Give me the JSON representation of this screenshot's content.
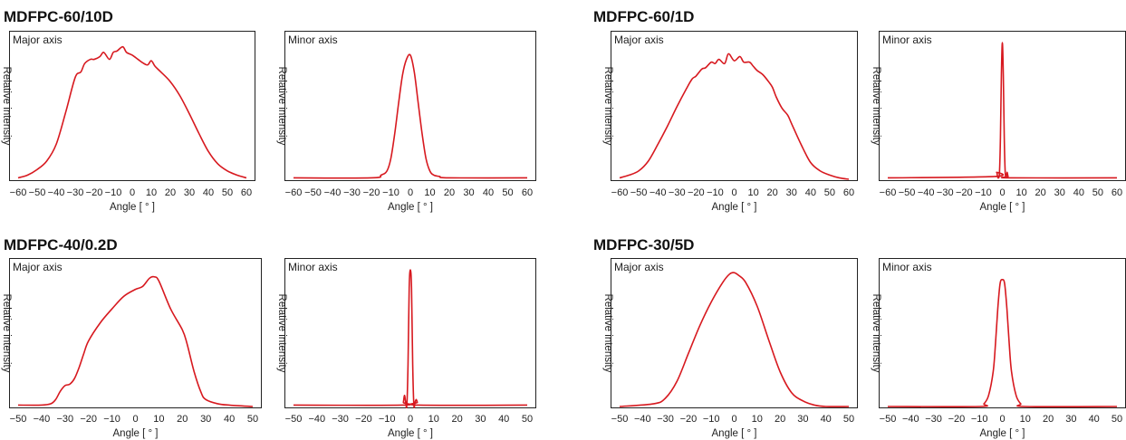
{
  "chart_data": [
    {
      "type": "line",
      "title": "MDFPC-60/10D",
      "panels": [
        {
          "label": "Major axis",
          "ylabel": "Relative intensity",
          "xlabel": "Angle [ ° ]",
          "xlim": [
            -60,
            60
          ],
          "xticks": [
            -60,
            -50,
            -40,
            -30,
            -20,
            -10,
            0,
            10,
            20,
            30,
            40,
            50,
            60
          ],
          "ylim": [
            0,
            1
          ],
          "x": [
            -60,
            -55,
            -50,
            -45,
            -40,
            -35,
            -30,
            -27,
            -25,
            -22,
            -20,
            -17,
            -15,
            -12,
            -10,
            -8,
            -5,
            -3,
            0,
            3,
            5,
            8,
            10,
            12,
            15,
            20,
            25,
            30,
            35,
            40,
            45,
            50,
            55,
            60
          ],
          "y": [
            0.01,
            0.03,
            0.07,
            0.13,
            0.25,
            0.48,
            0.73,
            0.77,
            0.83,
            0.86,
            0.86,
            0.88,
            0.91,
            0.86,
            0.91,
            0.92,
            0.95,
            0.91,
            0.89,
            0.86,
            0.84,
            0.82,
            0.85,
            0.81,
            0.77,
            0.7,
            0.6,
            0.47,
            0.33,
            0.2,
            0.11,
            0.06,
            0.03,
            0.01
          ]
        },
        {
          "label": "Minor axis",
          "ylabel": "Relative intensity",
          "xlabel": "Angle [ ° ]",
          "xlim": [
            -60,
            60
          ],
          "xticks": [
            -60,
            -50,
            -40,
            -30,
            -20,
            -10,
            0,
            10,
            20,
            30,
            40,
            50,
            60
          ],
          "ylim": [
            0,
            1
          ],
          "x": [
            -60,
            -20,
            -15,
            -12,
            -10,
            -8,
            -6,
            -4,
            -2,
            0,
            2,
            4,
            6,
            8,
            10,
            12,
            15,
            20,
            60
          ],
          "y": [
            0.01,
            0.01,
            0.03,
            0.06,
            0.15,
            0.33,
            0.55,
            0.75,
            0.86,
            0.89,
            0.77,
            0.55,
            0.33,
            0.15,
            0.06,
            0.03,
            0.02,
            0.01,
            0.01
          ]
        }
      ]
    },
    {
      "type": "line",
      "title": "MDFPC-60/1D",
      "panels": [
        {
          "label": "Major axis",
          "ylabel": "Relative intensity",
          "xlabel": "Angle [ ° ]",
          "xlim": [
            -60,
            60
          ],
          "xticks": [
            -60,
            -50,
            -40,
            -30,
            -20,
            -10,
            0,
            10,
            20,
            30,
            40,
            50,
            60
          ],
          "ylim": [
            0,
            1
          ],
          "x": [
            -60,
            -55,
            -50,
            -45,
            -40,
            -35,
            -30,
            -25,
            -22,
            -20,
            -17,
            -15,
            -12,
            -10,
            -8,
            -5,
            -3,
            0,
            3,
            5,
            8,
            10,
            12,
            15,
            18,
            20,
            22,
            25,
            28,
            30,
            35,
            40,
            45,
            50,
            55,
            60
          ],
          "y": [
            0.01,
            0.03,
            0.06,
            0.13,
            0.25,
            0.38,
            0.52,
            0.65,
            0.72,
            0.74,
            0.79,
            0.8,
            0.84,
            0.83,
            0.86,
            0.83,
            0.9,
            0.85,
            0.88,
            0.84,
            0.84,
            0.81,
            0.78,
            0.75,
            0.7,
            0.66,
            0.59,
            0.51,
            0.46,
            0.4,
            0.25,
            0.12,
            0.06,
            0.03,
            0.01,
            0.0
          ]
        },
        {
          "label": "Minor axis",
          "ylabel": "Relative intensity",
          "xlabel": "Angle [ ° ]",
          "xlim": [
            -60,
            60
          ],
          "xticks": [
            -60,
            -50,
            -40,
            -30,
            -20,
            -10,
            0,
            10,
            20,
            30,
            40,
            50,
            60
          ],
          "ylim": [
            0,
            1
          ],
          "x": [
            -60,
            -4,
            -3,
            -2.5,
            -2,
            -1.5,
            -1,
            -0.5,
            0,
            0.5,
            1,
            1.5,
            2,
            2.5,
            3,
            4,
            60
          ],
          "y": [
            0.01,
            0.02,
            0.05,
            0.02,
            0.01,
            0.05,
            0.3,
            0.75,
            0.98,
            0.75,
            0.3,
            0.05,
            0.02,
            0.05,
            0.02,
            0.01,
            0.01
          ]
        }
      ]
    },
    {
      "type": "line",
      "title": "MDFPC-40/0.2D",
      "panels": [
        {
          "label": "Major axis",
          "ylabel": "Relative intensity",
          "xlabel": "Angle [ ° ]",
          "xlim": [
            -50,
            50
          ],
          "xticks": [
            -50,
            -40,
            -30,
            -20,
            -10,
            0,
            10,
            20,
            30,
            40,
            50
          ],
          "ylim": [
            0,
            1
          ],
          "x": [
            -50,
            -40,
            -36,
            -34,
            -32,
            -30,
            -28,
            -26,
            -24,
            -22,
            -20,
            -15,
            -10,
            -5,
            0,
            3,
            6,
            8,
            10,
            15,
            20,
            22,
            25,
            28,
            30,
            35,
            40,
            50
          ],
          "y": [
            0.01,
            0.01,
            0.02,
            0.05,
            0.11,
            0.15,
            0.16,
            0.2,
            0.28,
            0.38,
            0.47,
            0.6,
            0.7,
            0.79,
            0.84,
            0.86,
            0.92,
            0.93,
            0.9,
            0.7,
            0.55,
            0.45,
            0.25,
            0.1,
            0.05,
            0.02,
            0.01,
            0.0
          ]
        },
        {
          "label": "Minor axis",
          "ylabel": "Relative intensity",
          "xlabel": "Angle [ ° ]",
          "xlim": [
            -50,
            50
          ],
          "xticks": [
            -50,
            -40,
            -30,
            -20,
            -10,
            0,
            10,
            20,
            30,
            40,
            50
          ],
          "ylim": [
            0,
            1
          ],
          "x": [
            -50,
            -3.5,
            -3,
            -2.5,
            -2,
            -1.5,
            -1,
            -0.5,
            0,
            0.5,
            1,
            1.5,
            2,
            2.5,
            3,
            3.5,
            50
          ],
          "y": [
            0.01,
            0.01,
            0.03,
            0.08,
            0.03,
            0.01,
            0.3,
            0.85,
            0.98,
            0.85,
            0.3,
            0.01,
            0.03,
            0.05,
            0.03,
            0.01,
            0.01
          ]
        }
      ]
    },
    {
      "type": "line",
      "title": "MDFPC-30/5D",
      "panels": [
        {
          "label": "Major axis",
          "ylabel": "Relative intensity",
          "xlabel": "Angle [ ° ]",
          "xlim": [
            -50,
            50
          ],
          "xticks": [
            -50,
            -40,
            -30,
            -20,
            -10,
            0,
            10,
            20,
            30,
            40,
            50
          ],
          "ylim": [
            0,
            1
          ],
          "x": [
            -50,
            -35,
            -30,
            -25,
            -20,
            -15,
            -10,
            -5,
            -2,
            0,
            2,
            5,
            10,
            15,
            20,
            25,
            30,
            35,
            40,
            50
          ],
          "y": [
            0.0,
            0.02,
            0.06,
            0.18,
            0.38,
            0.58,
            0.75,
            0.89,
            0.95,
            0.96,
            0.94,
            0.89,
            0.72,
            0.48,
            0.25,
            0.1,
            0.04,
            0.01,
            0.0,
            0.0
          ]
        },
        {
          "label": "Minor axis",
          "ylabel": "Relative intensity",
          "xlabel": "Angle [ ° ]",
          "xlim": [
            -50,
            50
          ],
          "xticks": [
            -50,
            -40,
            -30,
            -20,
            -10,
            0,
            10,
            20,
            30,
            40,
            50
          ],
          "ylim": [
            0,
            1
          ],
          "x": [
            -50,
            -10,
            -8,
            -6,
            -4,
            -3,
            -2,
            -1,
            0,
            1,
            2,
            3,
            4,
            6,
            8,
            10,
            50
          ],
          "y": [
            0.0,
            0.0,
            0.02,
            0.08,
            0.25,
            0.45,
            0.7,
            0.88,
            0.91,
            0.88,
            0.7,
            0.45,
            0.25,
            0.08,
            0.02,
            0.0,
            0.0
          ]
        }
      ]
    }
  ],
  "colors": {
    "curve": "#d7191f",
    "axis": "#222222"
  }
}
